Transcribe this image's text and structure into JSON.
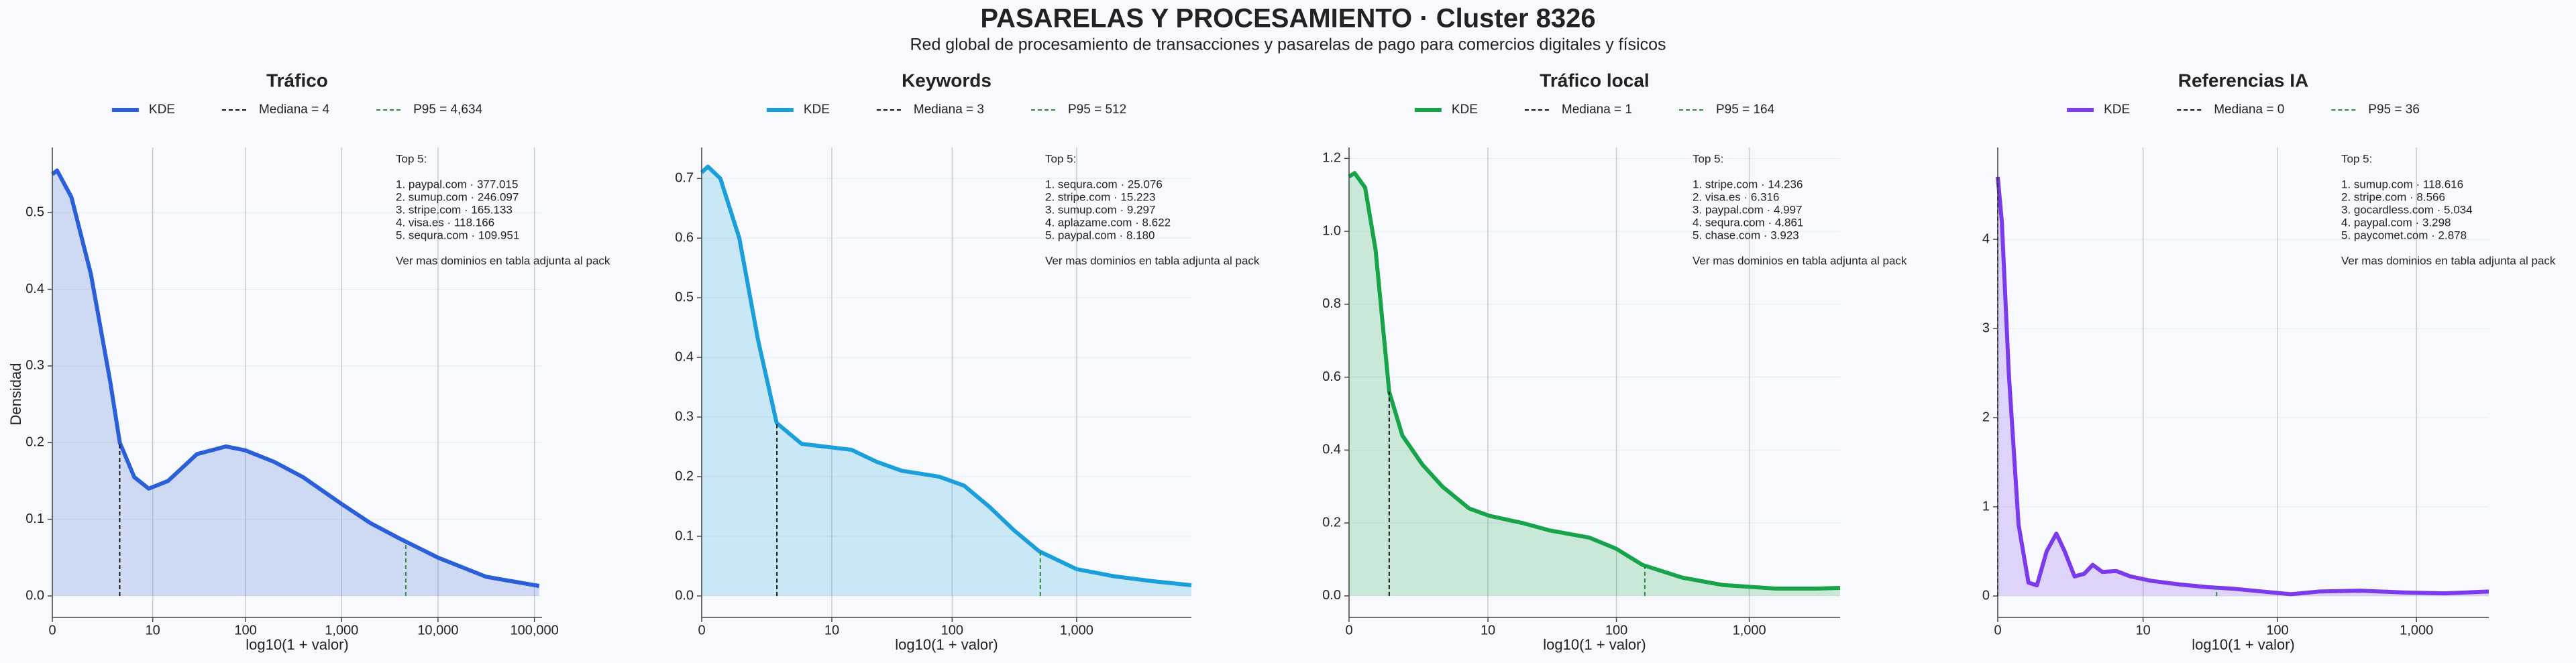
{
  "header": {
    "title": "PASARELAS Y PROCESAMIENTO · Cluster 8326",
    "subtitle": "Red global de procesamiento de transacciones y pasarelas de pago para comercios digitales y físicos"
  },
  "chart_data": [
    {
      "type": "line",
      "title": "Tráfico",
      "xlabel": "log10(1 + valor)",
      "ylabel": "Densidad",
      "xscale": "log1p",
      "grid": true,
      "x": [
        0,
        0.12,
        0.58,
        1.51,
        2.98,
        4.01,
        6.08,
        9,
        14.85,
        30.6,
        62.1,
        99,
        198.5,
        397,
        999,
        1994,
        3980,
        9999,
        31622,
        112200
      ],
      "series": [
        {
          "name": "KDE",
          "color": "#2b5fd9",
          "values": [
            0.55,
            0.555,
            0.52,
            0.42,
            0.28,
            0.2,
            0.155,
            0.14,
            0.15,
            0.185,
            0.195,
            0.19,
            0.175,
            0.155,
            0.12,
            0.095,
            0.075,
            0.05,
            0.025,
            0.013
          ]
        }
      ],
      "reference_lines": [
        {
          "name": "Mediana = 4",
          "value": 4,
          "color": "#111111"
        },
        {
          "name": "P95 = 4,634",
          "value": 4634,
          "color": "#2e8b3a"
        }
      ],
      "xlim": [
        0,
        120000
      ],
      "ylim": [
        -0.028,
        0.585
      ],
      "xticks": [
        0,
        10,
        100,
        {
          "value": 1000,
          "label": "1,000"
        },
        {
          "value": 10000,
          "label": "10,000"
        },
        {
          "value": 100000,
          "label": "100,000"
        }
      ],
      "yticks": [
        {
          "value": 0,
          "label": "0.0"
        },
        0.1,
        0.2,
        0.3,
        0.4,
        0.5
      ],
      "annotation": {
        "heading": "Top 5:",
        "items": [
          "1. paypal.com · 377.015",
          "2. sumup.com · 246.097",
          "3. stripe.com · 165.133",
          "4. visa.es · 118.166",
          "5. sequra.com · 109.951"
        ],
        "footer": "Ver mas dominios en tabla adjunta al pack"
      }
    },
    {
      "type": "line",
      "title": "Keywords",
      "xlabel": "log10(1 + valor)",
      "xscale": "log1p",
      "grid": true,
      "x": [
        0,
        0.12,
        0.41,
        1.0,
        1.82,
        2.98,
        5.31,
        9,
        14.85,
        24.1,
        38.8,
        78.4,
        124.9,
        198.5,
        315.2,
        500.2,
        999,
        1994,
        3980,
        8300
      ],
      "series": [
        {
          "name": "KDE",
          "color": "#1a9fdb",
          "values": [
            0.71,
            0.72,
            0.7,
            0.6,
            0.43,
            0.29,
            0.255,
            0.25,
            0.245,
            0.225,
            0.21,
            0.2,
            0.185,
            0.15,
            0.11,
            0.075,
            0.045,
            0.033,
            0.025,
            0.018
          ]
        }
      ],
      "reference_lines": [
        {
          "name": "Mediana = 3",
          "value": 3,
          "color": "#111111"
        },
        {
          "name": "P95 = 512",
          "value": 512,
          "color": "#2e8b3a"
        }
      ],
      "xlim": [
        0,
        8300
      ],
      "ylim": [
        -0.036,
        0.752
      ],
      "xticks": [
        0,
        10,
        100,
        {
          "value": 1000,
          "label": "1,000"
        }
      ],
      "yticks": [
        {
          "value": 0,
          "label": "0.0"
        },
        0.1,
        0.2,
        0.3,
        0.4,
        0.5,
        0.6,
        0.7
      ],
      "annotation": {
        "heading": "Top 5:",
        "items": [
          "1. sequra.com · 25.076",
          "2. stripe.com · 15.223",
          "3. sumup.com · 9.297",
          "4. aplazame.com · 8.622",
          "5. paypal.com · 8.180"
        ],
        "footer": "Ver mas dominios en tabla adjunta al pack"
      }
    },
    {
      "type": "line",
      "title": "Tráfico local",
      "xlabel": "log10(1 + valor)",
      "xscale": "log1p",
      "grid": true,
      "x": [
        0,
        0.1,
        0.32,
        0.58,
        1.0,
        1.51,
        2.55,
        4.01,
        6.94,
        10.2,
        18.95,
        30.6,
        62.1,
        99,
        157.5,
        315.2,
        630,
        1584,
        3161,
        4800
      ],
      "series": [
        {
          "name": "KDE",
          "color": "#16a34a",
          "values": [
            1.15,
            1.16,
            1.12,
            0.95,
            0.56,
            0.44,
            0.36,
            0.3,
            0.24,
            0.22,
            0.2,
            0.18,
            0.16,
            0.13,
            0.085,
            0.05,
            0.03,
            0.02,
            0.02,
            0.022
          ]
        }
      ],
      "reference_lines": [
        {
          "name": "Mediana = 1",
          "value": 1,
          "color": "#111111"
        },
        {
          "name": "P95 = 164",
          "value": 164,
          "color": "#2e8b3a"
        }
      ],
      "xlim": [
        0,
        4800
      ],
      "ylim": [
        -0.059,
        1.23
      ],
      "xticks": [
        0,
        10,
        100,
        {
          "value": 1000,
          "label": "1,000"
        }
      ],
      "yticks": [
        {
          "value": 0,
          "label": "0.0"
        },
        0.2,
        0.4,
        0.6,
        0.8,
        {
          "value": 1,
          "label": "1.0"
        },
        1.2
      ],
      "annotation": {
        "heading": "Top 5:",
        "items": [
          "1. stripe.com · 14.236",
          "2. visa.es · 6.316",
          "3. paypal.com · 4.997",
          "4. sequra.com · 4.861",
          "5. chase.com · 3.923"
        ],
        "footer": "Ver mas dominios en tabla adjunta al pack"
      }
    },
    {
      "type": "line",
      "title": "Referencias IA",
      "xlabel": "log10(1 + valor)",
      "xscale": "log1p",
      "grid": true,
      "x": [
        0,
        0.07,
        0.2,
        0.41,
        0.66,
        0.91,
        1.24,
        1.63,
        2.02,
        2.55,
        3.17,
        3.79,
        4.62,
        6.08,
        7.91,
        11.6,
        18.95,
        30.6,
        49.1,
        78.4,
        124.9,
        198.5,
        397,
        793,
        1584,
        3300
      ],
      "series": [
        {
          "name": "KDE",
          "color": "#7c3aed",
          "values": [
            4.7,
            4.2,
            2.5,
            0.8,
            0.15,
            0.12,
            0.5,
            0.7,
            0.5,
            0.22,
            0.25,
            0.35,
            0.27,
            0.28,
            0.22,
            0.17,
            0.13,
            0.1,
            0.08,
            0.05,
            0.02,
            0.05,
            0.06,
            0.04,
            0.03,
            0.05
          ]
        }
      ],
      "reference_lines": [
        {
          "name": "Mediana = 0",
          "value": 0,
          "color": "#111111"
        },
        {
          "name": "P95 = 36",
          "value": 36,
          "color": "#2e8b3a"
        }
      ],
      "xlim": [
        0,
        3300
      ],
      "ylim": [
        -0.24,
        5.03
      ],
      "xticks": [
        0,
        10,
        100,
        {
          "value": 1000,
          "label": "1,000"
        }
      ],
      "yticks": [
        0,
        1,
        2,
        3,
        4
      ],
      "annotation": {
        "heading": "Top 5:",
        "items": [
          "1. sumup.com · 118.616",
          "2. stripe.com · 8.566",
          "3. gocardless.com · 5.034",
          "4. paypal.com · 3.298",
          "5. paycomet.com · 2.878"
        ],
        "footer": "Ver mas dominios en tabla adjunta al pack"
      }
    }
  ]
}
